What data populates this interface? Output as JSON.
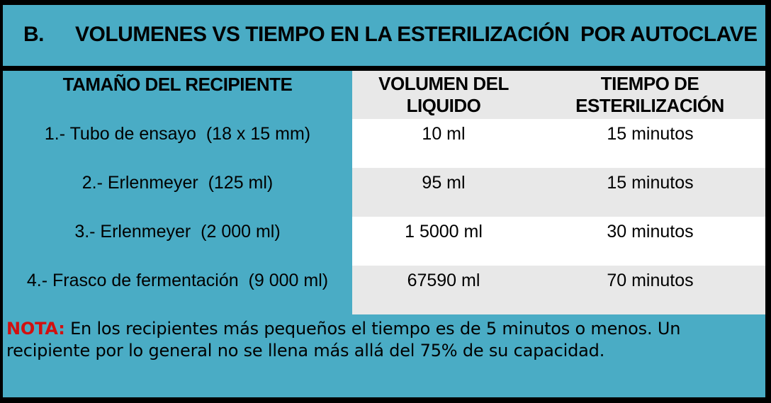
{
  "title": {
    "index": "B.",
    "text": "VOLUMENES VS TIEMPO EN LA ESTERILIZACIÓN  POR AUTOCLAVE"
  },
  "table": {
    "columns": [
      "TAMAÑO DEL RECIPIENTE",
      "VOLUMEN DEL LIQUIDO",
      "TIEMPO DE ESTERILIZACIÓN"
    ],
    "rows": [
      {
        "recipiente": "1.- Tubo de ensayo  (18 x 15 mm)",
        "volumen": "10 ml",
        "tiempo": "15 minutos"
      },
      {
        "recipiente": "2.- Erlenmeyer  (125 ml)",
        "volumen": "95 ml",
        "tiempo": "15 minutos"
      },
      {
        "recipiente": "3.- Erlenmeyer  (2 000 ml)",
        "volumen": "1 5000 ml",
        "tiempo": "30 minutos"
      },
      {
        "recipiente": "4.- Frasco de fermentación  (9 000 ml)",
        "volumen": "67590 ml",
        "tiempo": "70 minutos"
      }
    ]
  },
  "note": {
    "label": "NOTA:",
    "text": "En los recipientes más pequeños el tiempo es de 5 minutos o menos. Un recipiente por lo general no se llena más allá del 75% de su capacidad."
  },
  "colors": {
    "background_teal": "#4AACC5",
    "band_gray": "#E8E8E8",
    "band_white": "#FFFFFF",
    "note_label_red": "#D21010",
    "text_black": "#000000",
    "border_black": "#000000"
  }
}
